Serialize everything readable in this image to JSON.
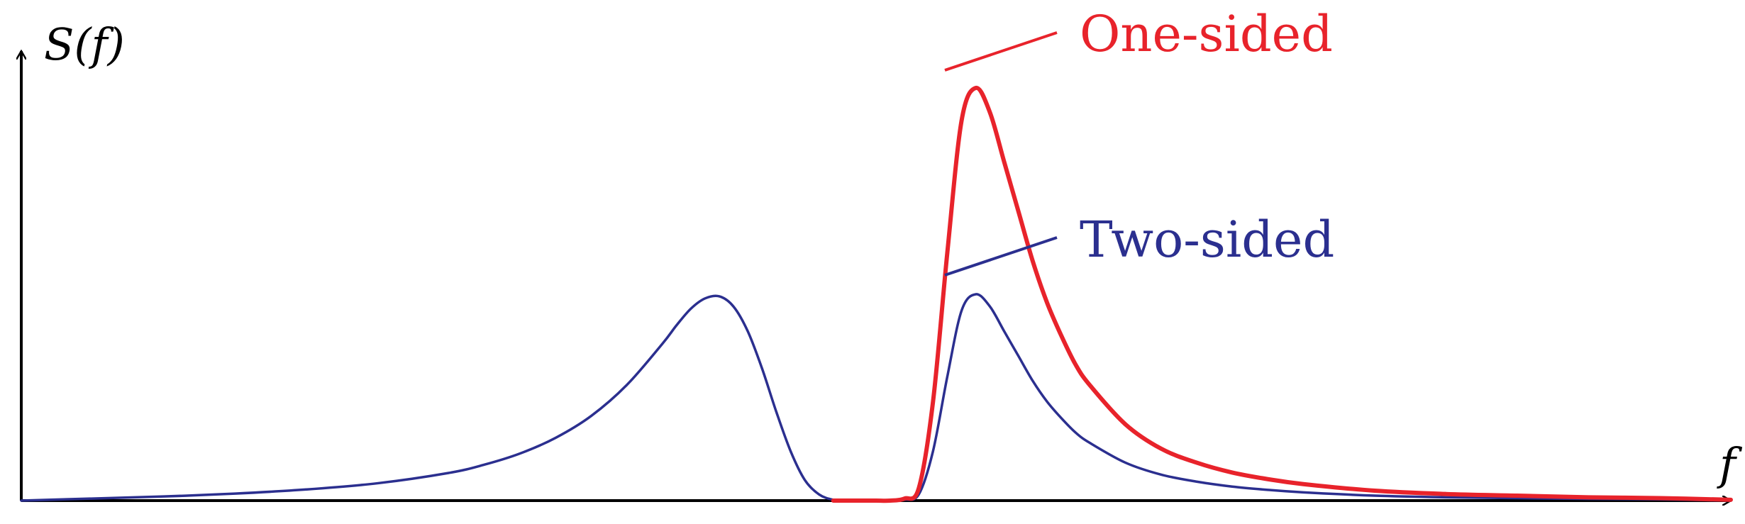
{
  "chart_data": {
    "type": "line",
    "ylabel": "S(f)",
    "xlabel": "f",
    "xlim": [
      -6,
      6
    ],
    "ylim": [
      0,
      1.0
    ],
    "grid": false,
    "series": [
      {
        "name": "Two-sided",
        "color": "#2b2f8f",
        "x": [
          -6.0,
          -5.5,
          -5.0,
          -4.5,
          -4.0,
          -3.5,
          -3.0,
          -2.75,
          -2.5,
          -2.25,
          -2.0,
          -1.75,
          -1.5,
          -1.4,
          -1.3,
          -1.2,
          -1.1,
          -1.0,
          -0.9,
          -0.8,
          -0.7,
          -0.6,
          -0.5,
          -0.4,
          -0.3,
          -0.2,
          -0.1,
          0.0,
          0.1,
          0.2,
          0.3,
          0.4,
          0.5,
          0.6,
          0.7,
          0.8,
          0.9,
          1.0,
          1.1,
          1.2,
          1.3,
          1.4,
          1.5,
          1.75,
          2.0,
          2.25,
          2.5,
          2.75,
          3.0,
          3.5,
          4.0,
          4.5,
          5.0,
          5.5,
          6.0
        ],
        "y": [
          0.0,
          0.005,
          0.01,
          0.017,
          0.027,
          0.042,
          0.067,
          0.087,
          0.114,
          0.152,
          0.205,
          0.28,
          0.38,
          0.425,
          0.465,
          0.49,
          0.495,
          0.47,
          0.41,
          0.32,
          0.215,
          0.12,
          0.05,
          0.015,
          0.002,
          0.0,
          0.0,
          0.0,
          0.0,
          0.002,
          0.015,
          0.12,
          0.3,
          0.46,
          0.5,
          0.47,
          0.41,
          0.35,
          0.29,
          0.24,
          0.2,
          0.165,
          0.14,
          0.092,
          0.063,
          0.046,
          0.034,
          0.026,
          0.02,
          0.012,
          0.008,
          0.006,
          0.004,
          0.003,
          0.0
        ]
      },
      {
        "name": "One-sided",
        "color": "#e8232b",
        "x": [
          -0.3,
          -0.2,
          -0.1,
          0.0,
          0.1,
          0.2,
          0.3,
          0.4,
          0.5,
          0.6,
          0.7,
          0.8,
          0.9,
          1.0,
          1.1,
          1.2,
          1.3,
          1.4,
          1.5,
          1.75,
          2.0,
          2.25,
          2.5,
          2.75,
          3.0,
          3.5,
          4.0,
          4.5,
          5.0,
          5.5,
          6.0
        ],
        "y": [
          0.0,
          0.0,
          0.0,
          0.0,
          0.0,
          0.005,
          0.03,
          0.24,
          0.6,
          0.92,
          1.0,
          0.94,
          0.82,
          0.7,
          0.58,
          0.48,
          0.4,
          0.33,
          0.28,
          0.185,
          0.126,
          0.092,
          0.068,
          0.052,
          0.04,
          0.024,
          0.016,
          0.012,
          0.008,
          0.006,
          0.002
        ]
      }
    ],
    "annotations": [
      {
        "text": "One-sided",
        "color": "#e8232b"
      },
      {
        "text": "Two-sided",
        "color": "#2b2f8f"
      }
    ]
  }
}
